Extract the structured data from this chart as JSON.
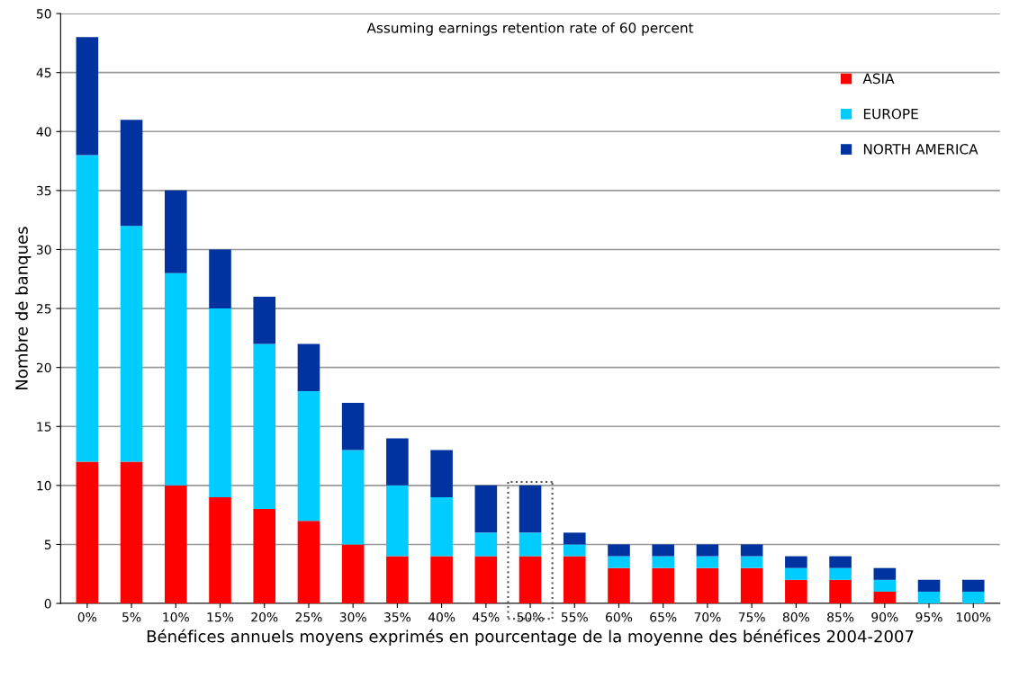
{
  "chart_data": {
    "type": "bar",
    "stacked": true,
    "title": "Assuming earnings retention rate of 60 percent",
    "xlabel": "Bénéfices annuels moyens exprimés en pourcentage de la moyenne des bénéfices 2004-2007",
    "ylabel": "Nombre de banques",
    "categories": [
      "0%",
      "5%",
      "10%",
      "15%",
      "20%",
      "25%",
      "30%",
      "35%",
      "40%",
      "45%",
      "50%",
      "55%",
      "60%",
      "65%",
      "70%",
      "75%",
      "80%",
      "85%",
      "90%",
      "95%",
      "100%"
    ],
    "series": [
      {
        "name": "ASIA",
        "color": "#ff0000",
        "values": [
          12,
          12,
          10,
          9,
          8,
          7,
          5,
          4,
          4,
          4,
          4,
          4,
          3,
          3,
          3,
          3,
          2,
          2,
          1,
          0,
          0
        ]
      },
      {
        "name": "EUROPE",
        "color": "#00ccff",
        "values": [
          26,
          20,
          18,
          16,
          14,
          11,
          8,
          6,
          5,
          2,
          2,
          1,
          1,
          1,
          1,
          1,
          1,
          1,
          1,
          1,
          1
        ]
      },
      {
        "name": "NORTH AMERICA",
        "color": "#0033a0",
        "values": [
          10,
          9,
          7,
          5,
          4,
          4,
          4,
          4,
          4,
          4,
          4,
          1,
          1,
          1,
          1,
          1,
          1,
          1,
          1,
          1,
          1
        ]
      }
    ],
    "ylim": [
      0,
      50
    ],
    "yticks": [
      0,
      5,
      10,
      15,
      20,
      25,
      30,
      35,
      40,
      45,
      50
    ],
    "grid": "y",
    "legend": "top right"
  }
}
